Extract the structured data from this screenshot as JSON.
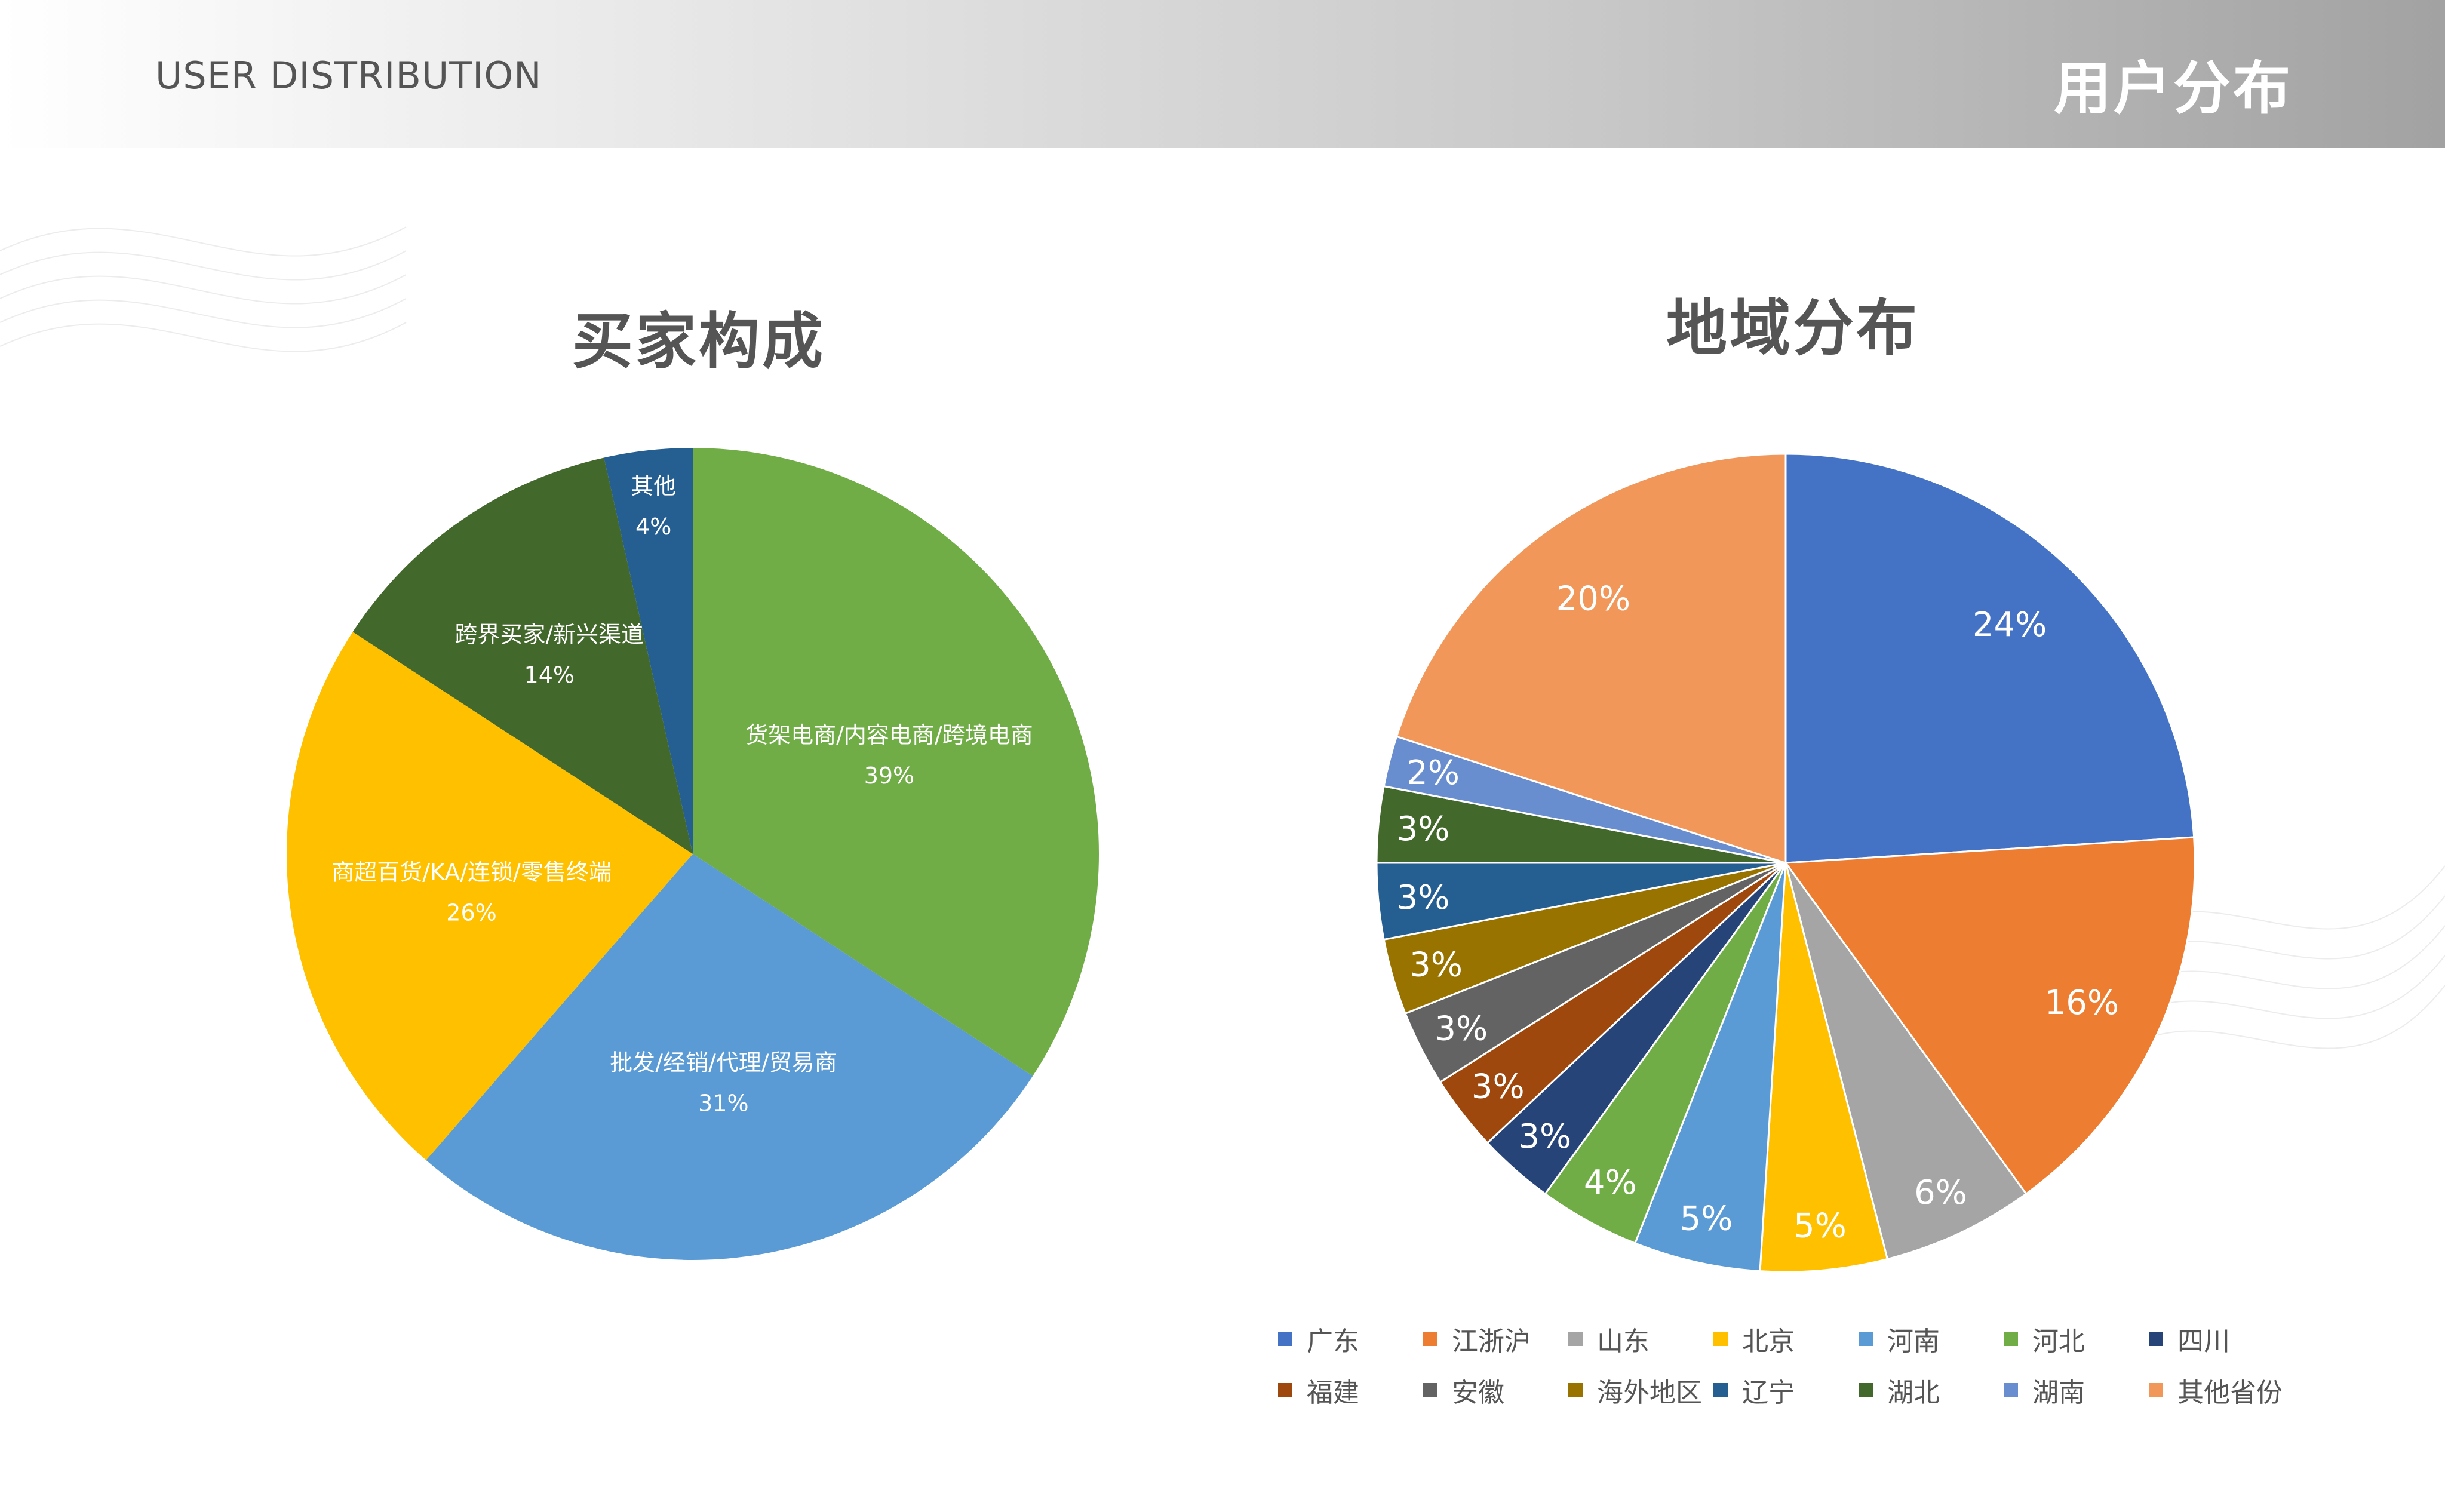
{
  "header": {
    "subtitle_en": "USER DISTRIBUTION",
    "title_cn": "用户分布"
  },
  "chart_data": [
    {
      "type": "pie",
      "title": "买家构成",
      "slices": [
        {
          "label": "货架电商/内容电商/跨境电商",
          "value": 39,
          "value_label": "39%",
          "color": "#70AD47"
        },
        {
          "label": "批发/经销/代理/贸易商",
          "value": 31,
          "value_label": "31%",
          "color": "#5B9BD5"
        },
        {
          "label": "商超百货/KA/连锁/零售终端",
          "value": 26,
          "value_label": "26%",
          "color": "#FFC000"
        },
        {
          "label": "跨界买家/新兴渠道",
          "value": 14,
          "value_label": "14%",
          "color": "#43682B"
        },
        {
          "label": "其他",
          "value": 4,
          "value_label": "4%",
          "color": "#255E91"
        }
      ],
      "legend": "none",
      "labels": "inside"
    },
    {
      "type": "pie",
      "title": "地域分布",
      "slices": [
        {
          "label": "广东",
          "value": 24,
          "value_label": "24%",
          "color": "#4472C4"
        },
        {
          "label": "江浙沪",
          "value": 16,
          "value_label": "16%",
          "color": "#ED7D31"
        },
        {
          "label": "山东",
          "value": 6,
          "value_label": "6%",
          "color": "#A5A5A5"
        },
        {
          "label": "北京",
          "value": 5,
          "value_label": "5%",
          "color": "#FFC000"
        },
        {
          "label": "河南",
          "value": 5,
          "value_label": "5%",
          "color": "#5B9BD5"
        },
        {
          "label": "河北",
          "value": 4,
          "value_label": "4%",
          "color": "#70AD47"
        },
        {
          "label": "四川",
          "value": 3,
          "value_label": "3%",
          "color": "#264478"
        },
        {
          "label": "福建",
          "value": 3,
          "value_label": "3%",
          "color": "#9E480E"
        },
        {
          "label": "安徽",
          "value": 3,
          "value_label": "3%",
          "color": "#636363"
        },
        {
          "label": "海外地区",
          "value": 3,
          "value_label": "3%",
          "color": "#997300"
        },
        {
          "label": "辽宁",
          "value": 3,
          "value_label": "3%",
          "color": "#255E91"
        },
        {
          "label": "湖北",
          "value": 3,
          "value_label": "3%",
          "color": "#43682B"
        },
        {
          "label": "湖南",
          "value": 2,
          "value_label": "2%",
          "color": "#698ED0"
        },
        {
          "label": "其他省份",
          "value": 20,
          "value_label": "20%",
          "color": "#F1975A"
        }
      ],
      "legend": "bottom",
      "labels": "inside"
    }
  ]
}
